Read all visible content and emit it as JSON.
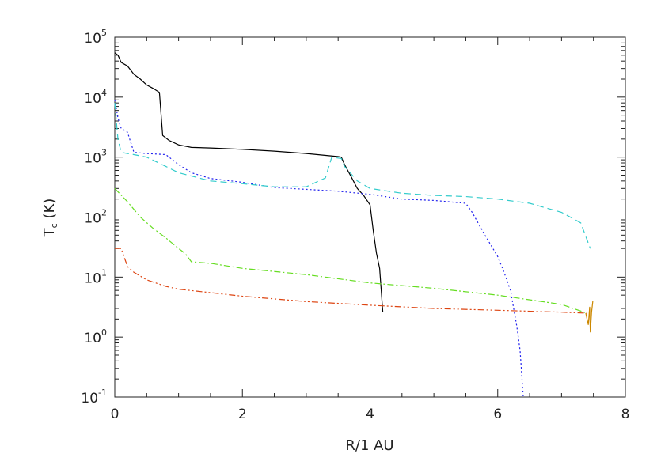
{
  "chart_data": {
    "type": "line",
    "title": "",
    "xlabel": "R/1 AU",
    "ylabel": {
      "main": "T",
      "subscript": "c",
      "unit": " (K)"
    },
    "xlim": [
      0,
      8
    ],
    "ylim": [
      0.1,
      100000
    ],
    "yscale": "log",
    "grid": false,
    "x_ticks": [
      0,
      2,
      4,
      6,
      8
    ],
    "x_tick_labels": [
      "0",
      "2",
      "4",
      "6",
      "8"
    ],
    "y_ticks": [
      0.1,
      1,
      10,
      100,
      1000,
      10000,
      100000
    ],
    "y_tick_labels": [
      {
        "base": "10",
        "exp": "-1"
      },
      {
        "base": "10",
        "exp": "0"
      },
      {
        "base": "10",
        "exp": "1"
      },
      {
        "base": "10",
        "exp": "2"
      },
      {
        "base": "10",
        "exp": "3"
      },
      {
        "base": "10",
        "exp": "4"
      },
      {
        "base": "10",
        "exp": "5"
      }
    ],
    "series": [
      {
        "color": "#000000",
        "dash": "",
        "points": [
          [
            0,
            55000
          ],
          [
            0.05,
            50000
          ],
          [
            0.1,
            38000
          ],
          [
            0.2,
            33000
          ],
          [
            0.3,
            24000
          ],
          [
            0.4,
            20000
          ],
          [
            0.5,
            16000
          ],
          [
            0.6,
            14000
          ],
          [
            0.7,
            12000
          ],
          [
            0.75,
            2300
          ],
          [
            0.85,
            1900
          ],
          [
            1.0,
            1600
          ],
          [
            1.2,
            1450
          ],
          [
            1.5,
            1420
          ],
          [
            2.0,
            1350
          ],
          [
            2.5,
            1260
          ],
          [
            3.0,
            1150
          ],
          [
            3.5,
            1020
          ],
          [
            3.55,
            1000
          ],
          [
            3.6,
            750
          ],
          [
            3.7,
            480
          ],
          [
            3.8,
            300
          ],
          [
            3.9,
            230
          ],
          [
            4.0,
            160
          ],
          [
            4.05,
            60
          ],
          [
            4.1,
            25
          ],
          [
            4.15,
            14
          ],
          [
            4.2,
            2.6
          ]
        ]
      },
      {
        "color": "#2222ee",
        "dash": "2,3",
        "points": [
          [
            0,
            9000
          ],
          [
            0.05,
            4500
          ],
          [
            0.1,
            3000
          ],
          [
            0.2,
            2600
          ],
          [
            0.3,
            1200
          ],
          [
            0.5,
            1150
          ],
          [
            0.8,
            1100
          ],
          [
            1.0,
            750
          ],
          [
            1.2,
            550
          ],
          [
            1.5,
            440
          ],
          [
            2.0,
            380
          ],
          [
            2.5,
            310
          ],
          [
            3.0,
            290
          ],
          [
            3.5,
            270
          ],
          [
            4.0,
            240
          ],
          [
            4.5,
            200
          ],
          [
            5.0,
            190
          ],
          [
            5.5,
            170
          ],
          [
            5.6,
            120
          ],
          [
            5.8,
            50
          ],
          [
            6.0,
            22
          ],
          [
            6.1,
            12
          ],
          [
            6.2,
            6
          ],
          [
            6.3,
            1.5
          ],
          [
            6.35,
            0.6
          ],
          [
            6.4,
            0.1
          ]
        ]
      },
      {
        "color": "#33cccc",
        "dash": "8,5",
        "points": [
          [
            0,
            8000
          ],
          [
            0.05,
            2000
          ],
          [
            0.1,
            1200
          ],
          [
            0.3,
            1100
          ],
          [
            0.5,
            1000
          ],
          [
            0.8,
            700
          ],
          [
            1.0,
            550
          ],
          [
            1.5,
            400
          ],
          [
            2.0,
            360
          ],
          [
            2.5,
            320
          ],
          [
            3.0,
            320
          ],
          [
            3.3,
            450
          ],
          [
            3.4,
            1000
          ],
          [
            3.55,
            950
          ],
          [
            3.6,
            700
          ],
          [
            3.8,
            400
          ],
          [
            4.0,
            300
          ],
          [
            4.5,
            250
          ],
          [
            5.0,
            230
          ],
          [
            5.5,
            220
          ],
          [
            6.0,
            200
          ],
          [
            6.5,
            170
          ],
          [
            7.0,
            120
          ],
          [
            7.3,
            80
          ],
          [
            7.45,
            30
          ]
        ]
      },
      {
        "color": "#66dd22",
        "dash": "8,3,2,3",
        "points": [
          [
            0,
            300
          ],
          [
            0.2,
            180
          ],
          [
            0.4,
            100
          ],
          [
            0.6,
            65
          ],
          [
            0.8,
            45
          ],
          [
            1.0,
            30
          ],
          [
            1.1,
            25
          ],
          [
            1.2,
            18
          ],
          [
            1.5,
            17
          ],
          [
            2.0,
            14
          ],
          [
            3.0,
            11
          ],
          [
            4.0,
            8
          ],
          [
            5.0,
            6.5
          ],
          [
            6.0,
            5
          ],
          [
            7.0,
            3.5
          ],
          [
            7.4,
            2.5
          ]
        ]
      },
      {
        "color": "#dd4411",
        "dash": "8,3,2,3,2,3",
        "points": [
          [
            0,
            30
          ],
          [
            0.1,
            30
          ],
          [
            0.2,
            15
          ],
          [
            0.3,
            12
          ],
          [
            0.5,
            9
          ],
          [
            0.8,
            7
          ],
          [
            1.0,
            6.3
          ],
          [
            1.5,
            5.5
          ],
          [
            2.0,
            4.8
          ],
          [
            3.0,
            3.9
          ],
          [
            4.0,
            3.4
          ],
          [
            5.0,
            3.0
          ],
          [
            6.0,
            2.8
          ],
          [
            7.0,
            2.6
          ],
          [
            7.4,
            2.5
          ]
        ]
      },
      {
        "color": "#cc8800",
        "dash": "",
        "points": [
          [
            7.38,
            2.5
          ],
          [
            7.42,
            1.6
          ],
          [
            7.44,
            3.2
          ],
          [
            7.45,
            1.2
          ],
          [
            7.47,
            2.6
          ],
          [
            7.49,
            4.0
          ]
        ]
      }
    ]
  }
}
